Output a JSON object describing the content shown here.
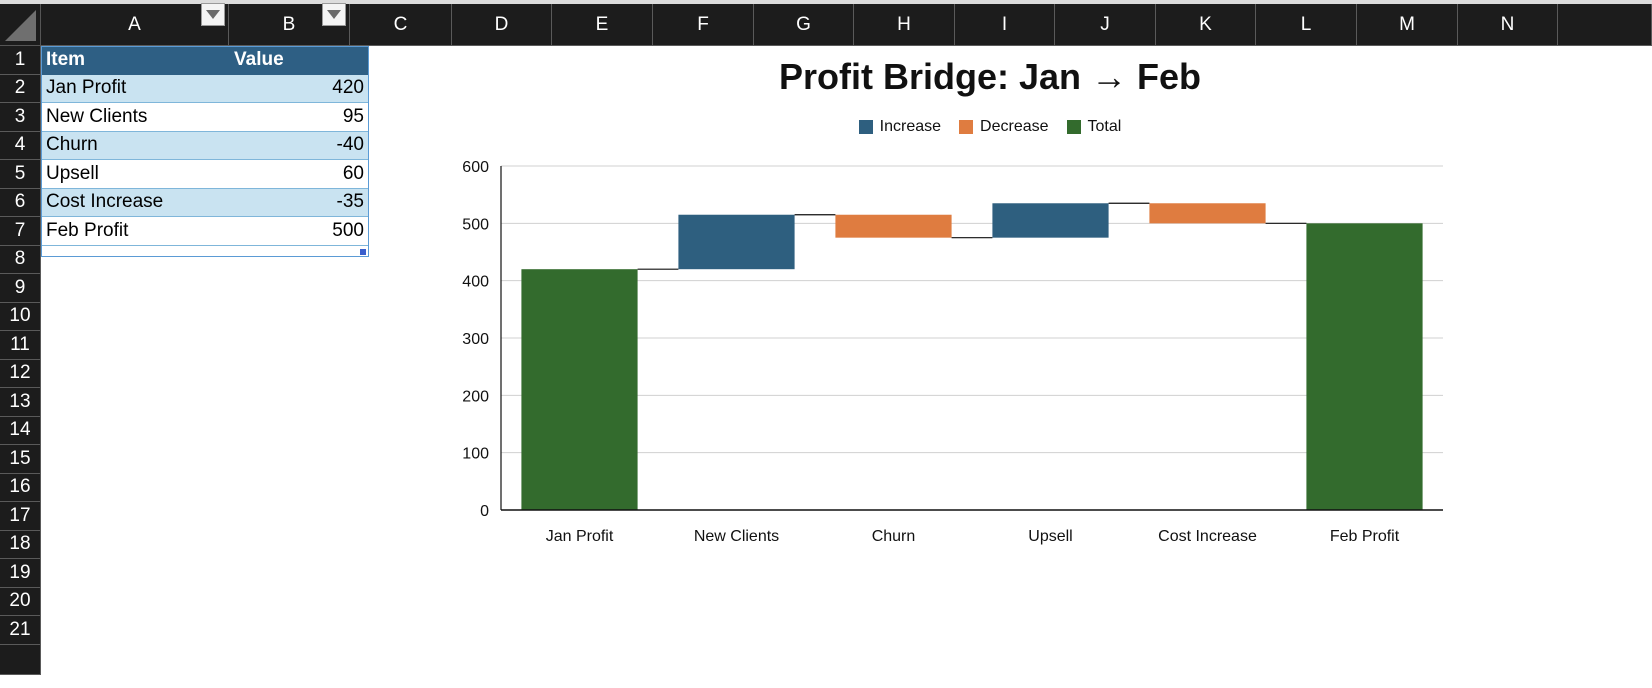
{
  "spreadsheet": {
    "columns": [
      "A",
      "B",
      "C",
      "D",
      "E",
      "F",
      "G",
      "H",
      "I",
      "J",
      "K",
      "L",
      "M",
      "N"
    ],
    "rows": [
      "1",
      "2",
      "3",
      "4",
      "5",
      "6",
      "7",
      "8",
      "9",
      "10",
      "11",
      "12",
      "13",
      "14",
      "15",
      "16",
      "17",
      "18",
      "19",
      "20",
      "21"
    ],
    "table": {
      "headers": [
        "Item",
        "Value"
      ],
      "rows": [
        {
          "item": "Jan Profit",
          "value": "420"
        },
        {
          "item": "New Clients",
          "value": "95"
        },
        {
          "item": "Churn",
          "value": "-40"
        },
        {
          "item": "Upsell",
          "value": "60"
        },
        {
          "item": "Cost Increase",
          "value": "-35"
        },
        {
          "item": "Feb Profit",
          "value": "500"
        }
      ]
    }
  },
  "chart_data": {
    "type": "bar",
    "subtype": "waterfall",
    "title": "Profit Bridge: Jan → Feb",
    "categories": [
      "Jan Profit",
      "New Clients",
      "Churn",
      "Upsell",
      "Cost Increase",
      "Feb Profit"
    ],
    "values": [
      420,
      95,
      -40,
      60,
      -35,
      500
    ],
    "kinds": [
      "total",
      "increase",
      "decrease",
      "increase",
      "decrease",
      "total"
    ],
    "legend": [
      {
        "key": "increase",
        "label": "Increase",
        "color": "#2e5f7f"
      },
      {
        "key": "decrease",
        "label": "Decrease",
        "color": "#df7c40"
      },
      {
        "key": "total",
        "label": "Total",
        "color": "#336b2d"
      }
    ],
    "legend_position": "top",
    "ylim": [
      0,
      600
    ],
    "yticks": [
      0,
      100,
      200,
      300,
      400,
      500,
      600
    ],
    "grid": true,
    "xlabel": "",
    "ylabel": ""
  }
}
